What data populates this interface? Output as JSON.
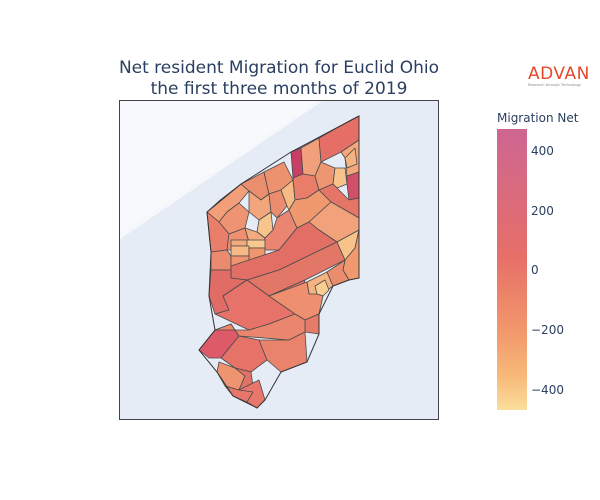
{
  "title": {
    "line1": "Net resident Migration for Euclid Ohio",
    "line2": "the first three months of 2019"
  },
  "logo": {
    "wordmark": "ADVAN",
    "tagline": "Research through Technology"
  },
  "colorbar": {
    "title": "Migration Net",
    "ticks": [
      "400",
      "200",
      "0",
      "−200",
      "−400"
    ],
    "range": [
      -460,
      470
    ],
    "colorscale": [
      "#fcde9c",
      "#faa476",
      "#f0746e",
      "#e34f6f",
      "#dc3977",
      "#b9257a",
      "#7c1d6f"
    ]
  },
  "map": {
    "background": "#e5ecf6",
    "lake": "#f5f7fb",
    "border": "#444444"
  }
}
